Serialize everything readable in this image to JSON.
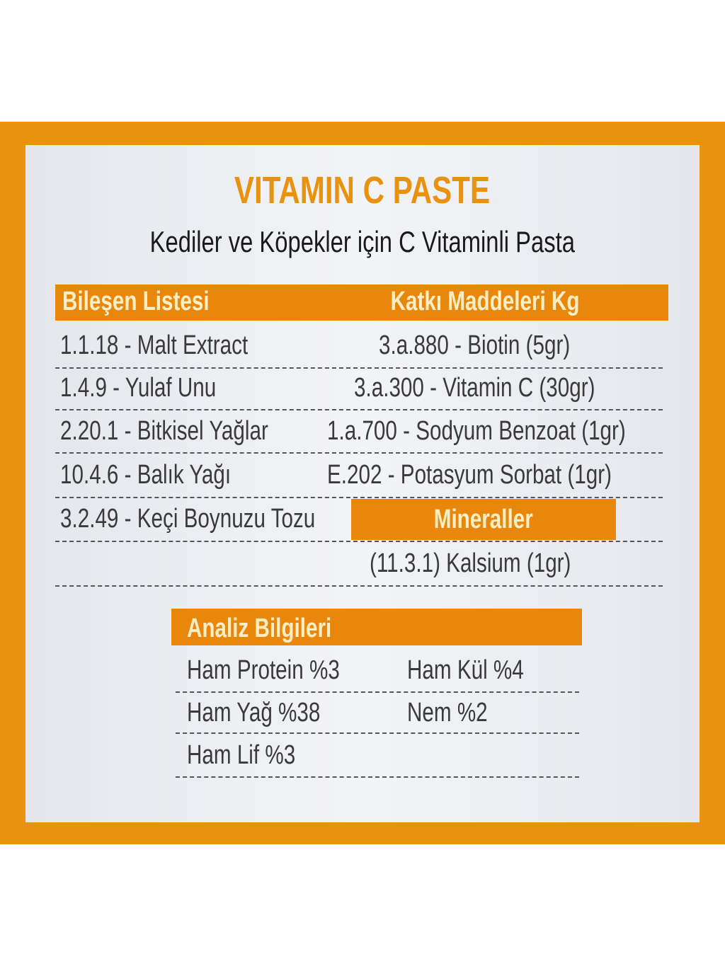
{
  "title": "VITAMIN C PASTE",
  "subtitle": "Kediler ve Köpekler için C Vitaminli Pasta",
  "colors": {
    "accent": "#e8920e",
    "bar": "#e8870c",
    "bar_text": "#fbeec4"
  },
  "ingredients": {
    "header": "Bileşen Listesi",
    "items": [
      "1.1.18 - Malt Extract",
      "1.4.9   - Yulaf Unu",
      "2.20.1 - Bitkisel Yağlar",
      "10.4.6 - Balık Yağı",
      "3.2.49 - Keçi Boynuzu Tozu"
    ]
  },
  "additives": {
    "header": "Katkı Maddeleri Kg",
    "items": [
      "3.a.880  - Biotin (5gr)",
      "3.a.300  - Vitamin C (30gr)",
      "1.a.700 - Sodyum Benzoat (1gr)",
      "E.202    - Potasyum Sorbat (1gr)"
    ]
  },
  "minerals": {
    "header": "Mineraller",
    "items": [
      "(11.3.1) Kalsium (1gr)"
    ]
  },
  "analysis": {
    "header": "Analiz Bilgileri",
    "left": [
      "Ham Protein %3",
      "Ham Yağ %38",
      "Ham Lif %3"
    ],
    "right": [
      "Ham Kül %4",
      "Nem %2"
    ]
  }
}
